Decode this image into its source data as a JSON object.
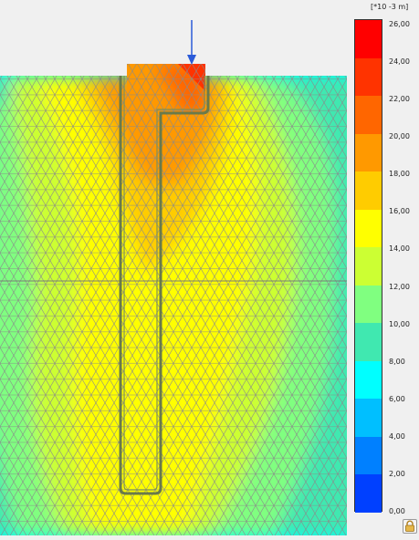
{
  "legend": {
    "unit_label": "[*10 -3 m]",
    "ticks": [
      "26,00",
      "24,00",
      "22,00",
      "20,00",
      "18,00",
      "16,00",
      "14,00",
      "12,00",
      "10,00",
      "8,00",
      "6,00",
      "4,00",
      "2,00",
      "0,00"
    ],
    "tick_values": [
      26,
      24,
      22,
      20,
      18,
      16,
      14,
      12,
      10,
      8,
      6,
      4,
      2,
      0
    ],
    "band_colors": [
      "#ff0000",
      "#ff3300",
      "#ff6600",
      "#ff9900",
      "#ffcc00",
      "#ffff00",
      "#ccff33",
      "#80ff80",
      "#40e8b0",
      "#00ffff",
      "#00bfff",
      "#0080ff",
      "#0040ff",
      "#0000ff"
    ]
  },
  "plot_colors": {
    "soil_background": "#3ee8c0",
    "outer_soil": "#00ffff",
    "mesh": "#7f7f7f",
    "pile_outline": "#6a7a4a",
    "load_arrow": "#2a5ad8"
  },
  "icons": {
    "lock": "lock-icon"
  }
}
